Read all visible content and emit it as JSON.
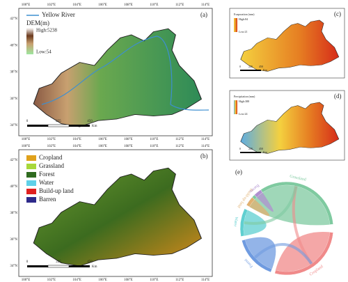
{
  "axes": {
    "lat": [
      "42°N",
      "40°N",
      "38°N",
      "36°N",
      "34°N"
    ],
    "lon": [
      "100°E",
      "102°E",
      "104°E",
      "106°E",
      "108°E",
      "110°E",
      "112°E",
      "114°E"
    ]
  },
  "scale": [
    "0",
    "225",
    "450",
    "Km"
  ],
  "panels": {
    "a": {
      "label": "(a)",
      "legend": {
        "river": "Yellow River",
        "title": "DEM(m)",
        "high": "High:5238",
        "low": "Low:54"
      }
    },
    "b": {
      "label": "(b)",
      "legend": [
        "Cropland",
        "Grassland",
        "Forest",
        "Water",
        "Build-up land",
        "Barren"
      ]
    },
    "c": {
      "label": "(c)",
      "title": "Evaporation (mm)",
      "high": "High:84",
      "low": "Low:21"
    },
    "d": {
      "label": "(d)",
      "title": "Precipitation (mm)",
      "high": "High:388",
      "low": "Low:24"
    },
    "e": {
      "label": "(e)",
      "nodes": [
        "Cropland",
        "Grassland",
        "Forest",
        "Water",
        "Build-up land",
        "Barren"
      ]
    }
  }
}
